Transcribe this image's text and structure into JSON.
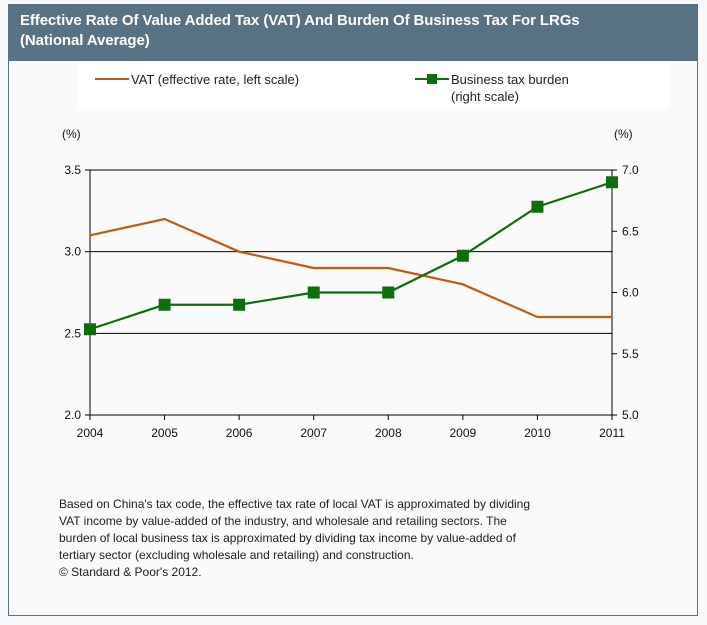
{
  "header": {
    "title_line1": "Effective Rate Of Value Added Tax (VAT) And Burden Of  Business Tax For LRGs",
    "title_line2": "(National Average)"
  },
  "legend": {
    "vat_label": "VAT (effective rate, left scale)",
    "business_label_line1": "Business tax burden",
    "business_label_line2": "(right scale)"
  },
  "footnote": {
    "lines": [
      "Based on China's tax code, the effective tax rate of local VAT is approximated by dividing",
      "VAT income by value-added of the industry, and wholesale and retailing sectors. The",
      "burden of local business tax is approximated by dividing tax income by value-added of",
      "tertiary sector (excluding wholesale and retailing) and construction."
    ],
    "copyright": "© Standard & Poor's 2012."
  },
  "colors": {
    "header_bg": "#587183",
    "vat": "#c9570f",
    "business": "#0d6e0d"
  },
  "chart_data": {
    "type": "line",
    "title": "Effective Rate Of Value Added Tax (VAT) And Burden Of  Business Tax For LRGs (National Average)",
    "x": [
      "2004",
      "2005",
      "2006",
      "2007",
      "2008",
      "2009",
      "2010",
      "2011"
    ],
    "series": [
      {
        "name": "VAT (effective rate, left scale)",
        "axis": "left",
        "marker": "none",
        "values": [
          3.1,
          3.2,
          3.0,
          2.9,
          2.9,
          2.8,
          2.6,
          2.6
        ]
      },
      {
        "name": "Business tax burden (right scale)",
        "axis": "right",
        "marker": "square",
        "values": [
          5.7,
          5.9,
          5.9,
          6.0,
          6.0,
          6.3,
          6.7,
          6.9
        ]
      }
    ],
    "left_axis": {
      "label": "(%)",
      "ylim": [
        2.0,
        3.5
      ],
      "ticks": [
        "2.0",
        "2.5",
        "3.0",
        "3.5"
      ]
    },
    "right_axis": {
      "label": "(%)",
      "ylim": [
        5.0,
        7.0
      ],
      "ticks": [
        "5.0",
        "5.5",
        "6.0",
        "6.5",
        "7.0"
      ]
    },
    "xlabel": "",
    "grid": "horizontal at left-axis ticks",
    "legend_position": "top"
  }
}
